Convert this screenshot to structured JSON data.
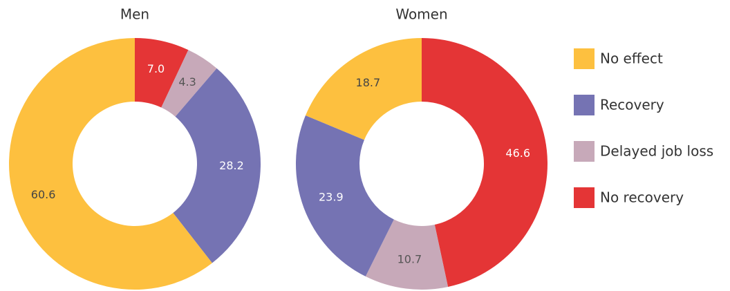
{
  "legend": {
    "labels": [
      "No effect",
      "Recovery",
      "Delayed job loss",
      "No recovery"
    ],
    "colors": [
      "#fdc03f",
      "#7573b3",
      "#c7a9b9",
      "#e43536"
    ]
  },
  "chart_data": [
    {
      "type": "donut",
      "title": "Men",
      "values": [
        60.6,
        28.2,
        4.3,
        7.0
      ],
      "value_labels": [
        "60.6",
        "28.2",
        "4.3",
        "7.0"
      ]
    },
    {
      "type": "donut",
      "title": "Women",
      "values": [
        18.7,
        23.9,
        10.7,
        46.6
      ],
      "value_labels": [
        "18.7",
        "23.9",
        "10.7",
        "46.6"
      ]
    }
  ]
}
